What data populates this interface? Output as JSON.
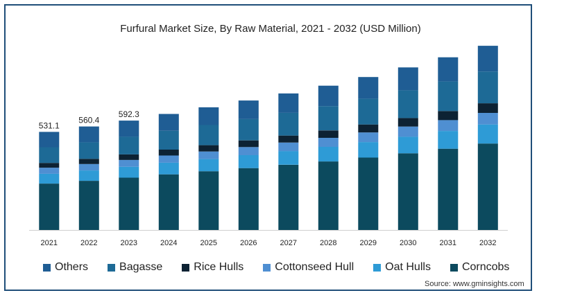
{
  "chart_data": {
    "type": "bar",
    "stacked": true,
    "title": "Furfural Market Size, By Raw Material, 2021 - 2032 (USD Million)",
    "categories": [
      "2021",
      "2022",
      "2023",
      "2024",
      "2025",
      "2026",
      "2027",
      "2028",
      "2029",
      "2030",
      "2031",
      "2032"
    ],
    "series": [
      {
        "name": "Corncobs",
        "color": "#0c4a5e",
        "values": [
          251,
          266,
          283,
          301,
          318,
          335,
          353,
          371,
          392,
          415,
          440,
          468
        ]
      },
      {
        "name": "Oat Hulls",
        "color": "#2e9bd6",
        "values": [
          53,
          56,
          59,
          63,
          66,
          70,
          74,
          79,
          84,
          90,
          96,
          103
        ]
      },
      {
        "name": "Cottonseed Hull",
        "color": "#4f8fd2",
        "values": [
          33,
          35,
          37,
          39,
          41,
          44,
          46,
          49,
          52,
          55,
          59,
          63
        ]
      },
      {
        "name": "Rice Hulls",
        "color": "#0d2233",
        "values": [
          26,
          28,
          30,
          32,
          34,
          36,
          38,
          40,
          43,
          46,
          49,
          52
        ]
      },
      {
        "name": "Bagasse",
        "color": "#1d6a96",
        "values": [
          85,
          90,
          96,
          102,
          109,
          116,
          123,
          131,
          140,
          150,
          160,
          172
        ]
      },
      {
        "name": "Others",
        "color": "#1f5d94",
        "values": [
          83.1,
          85.4,
          87.3,
          91,
          96,
          100,
          105,
          111,
          117,
          124,
          131,
          139
        ]
      }
    ],
    "data_labels": {
      "2021": "531.1",
      "2022": "560.4",
      "2023": "592.3"
    },
    "ylim": [
      0,
      1050
    ],
    "legend_position": "bottom",
    "legend_order": [
      "Others",
      "Bagasse",
      "Rice Hulls",
      "Cottonseed Hull",
      "Oat Hulls",
      "Corncobs"
    ],
    "source": "Source: www.gminsights.com"
  }
}
